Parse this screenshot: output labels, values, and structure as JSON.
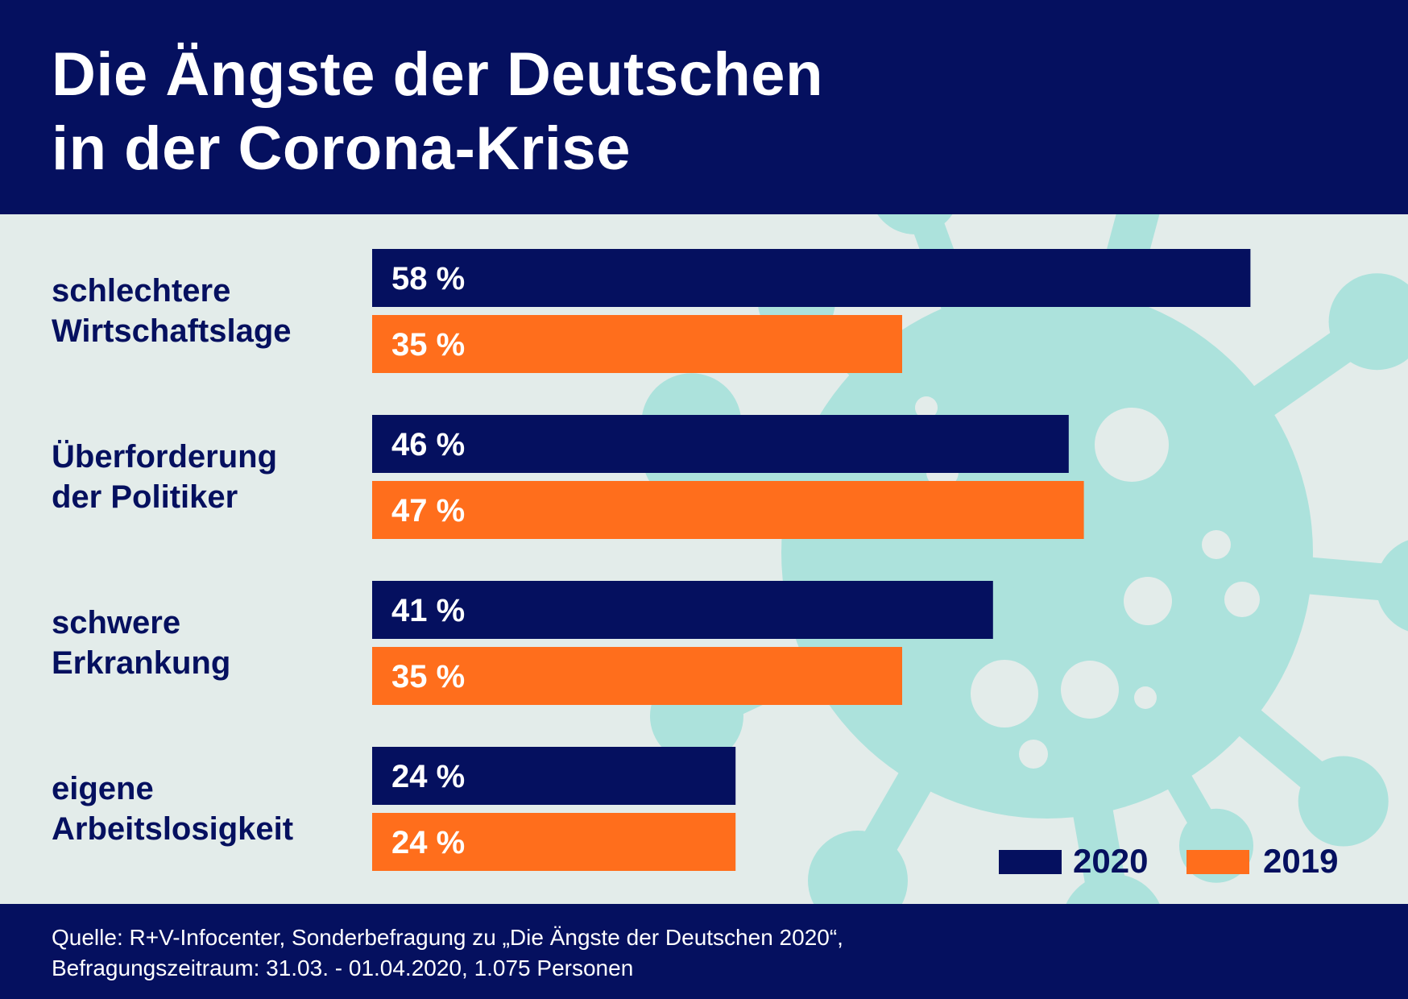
{
  "title_lines": [
    "Die Ängste der Deutschen",
    "in der Corona-Krise"
  ],
  "source_lines": [
    "Quelle: R+V-Infocenter, Sonderbefragung zu „Die Ängste der Deutschen 2020“,",
    "Befragungszeitraum: 31.03. -  01.04.2020, 1.075 Personen"
  ],
  "colors": {
    "navy": "#05105f",
    "orange": "#ff6e1c",
    "background": "#e3ecea",
    "virus": "#ace2dc"
  },
  "background_icon": "virus-icon",
  "legend": [
    {
      "label": "2020",
      "color": "#05105f"
    },
    {
      "label": "2019",
      "color": "#ff6e1c"
    }
  ],
  "chart_data": {
    "type": "bar",
    "orientation": "horizontal",
    "title": "Die Ängste der Deutschen in der Corona-Krise",
    "unit": "%",
    "categories": [
      [
        "schlechtere",
        "Wirtschaftslage"
      ],
      [
        "Überforderung",
        "der Politiker"
      ],
      [
        "schwere",
        "Erkrankung"
      ],
      [
        "eigene",
        "Arbeitslosigkeit"
      ]
    ],
    "series": [
      {
        "name": "2020",
        "color": "#05105f",
        "values": [
          58,
          46,
          41,
          24
        ],
        "labels": [
          "58 %",
          "46 %",
          "41 %",
          "24 %"
        ]
      },
      {
        "name": "2019",
        "color": "#ff6e1c",
        "values": [
          35,
          47,
          35,
          24
        ],
        "labels": [
          "35 %",
          "47 %",
          "35 %",
          "24 %"
        ]
      }
    ],
    "xlim": [
      0,
      100
    ],
    "grid": false,
    "legend_position": "bottom-right"
  }
}
